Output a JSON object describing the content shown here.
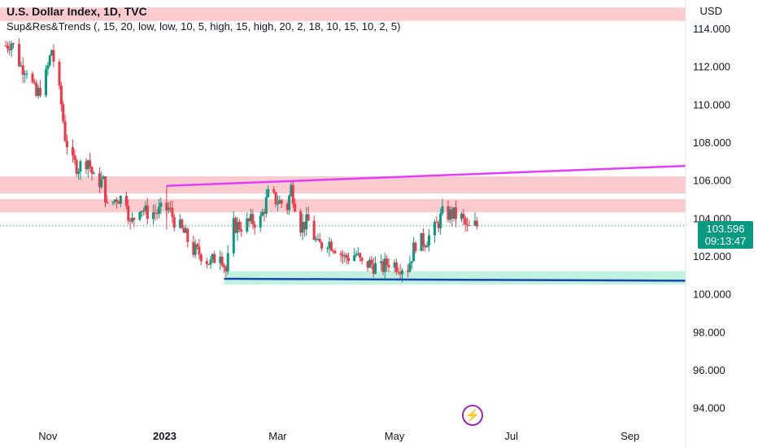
{
  "header": {
    "title": "U.S. Dollar Index, 1D, TVC",
    "indicator": "Sup&Res&Trends (, 15, 20, low, low, 10, 5, high, 15, high, 20, 2, 18, 10, 15, 10, 2, 5)",
    "currency": "USD"
  },
  "price_badge": {
    "price": "103.596",
    "countdown": "09:13:47"
  },
  "logo_icon": "lightning-icon",
  "colors": {
    "up": "#089981",
    "down": "#f23645",
    "resistance": "#f7a3a8",
    "support": "#8ee6c8",
    "trend_top": "#e040fb",
    "trend_bottom": "#1848a8",
    "badge": "#089981"
  },
  "chart_data": {
    "type": "candlestick",
    "y_ticks": [
      "114.000",
      "112.000",
      "110.000",
      "108.000",
      "106.000",
      "104.000",
      "102.000",
      "100.000",
      "98.000",
      "96.000",
      "94.000"
    ],
    "y_tick_values": [
      114,
      112,
      110,
      108,
      106,
      104,
      102,
      100,
      98,
      96,
      94
    ],
    "x_ticks": [
      "Nov",
      "2023",
      "Mar",
      "May",
      "Jul",
      "Sep"
    ],
    "x_tick_dates": [
      "2022-11-01",
      "2023-01-01",
      "2023-03-01",
      "2023-05-01",
      "2023-07-01",
      "2023-09-01"
    ],
    "ylim": [
      93,
      115.5
    ],
    "xlim": [
      "2022-10-07",
      "2023-09-30"
    ],
    "last_price": 103.596,
    "resistance_zones": [
      {
        "from": 114.4,
        "to": 115.1
      },
      {
        "from": 104.3,
        "to": 105.0
      },
      {
        "from": 105.3,
        "to": 106.2
      }
    ],
    "support_zones": [
      {
        "from": 100.5,
        "to": 101.2
      }
    ],
    "trendlines": [
      {
        "name": "top",
        "start": [
          "2023-01-02",
          105.7
        ],
        "end": [
          "2023-09-30",
          106.75
        ]
      },
      {
        "name": "bottom",
        "start": [
          "2023-02-01",
          100.8
        ],
        "end": [
          "2023-09-30",
          100.7
        ]
      }
    ],
    "closes": [
      [
        "2022-10-10",
        113.1
      ],
      [
        "2022-10-13",
        113.3
      ],
      [
        "2022-10-18",
        112.0
      ],
      [
        "2022-10-21",
        111.9
      ],
      [
        "2022-10-26",
        110.4
      ],
      [
        "2022-10-31",
        111.5
      ],
      [
        "2022-11-03",
        112.9
      ],
      [
        "2022-11-08",
        110.0
      ],
      [
        "2022-11-10",
        108.3
      ],
      [
        "2022-11-14",
        106.9
      ],
      [
        "2022-11-17",
        106.7
      ],
      [
        "2022-11-22",
        107.1
      ],
      [
        "2022-11-25",
        106.0
      ],
      [
        "2022-11-30",
        105.9
      ],
      [
        "2022-12-02",
        104.5
      ],
      [
        "2022-12-07",
        105.1
      ],
      [
        "2022-12-12",
        105.0
      ],
      [
        "2022-12-14",
        103.6
      ],
      [
        "2022-12-19",
        104.7
      ],
      [
        "2022-12-22",
        104.3
      ],
      [
        "2022-12-28",
        104.3
      ],
      [
        "2023-01-03",
        104.5
      ],
      [
        "2023-01-06",
        103.9
      ],
      [
        "2023-01-11",
        103.2
      ],
      [
        "2023-01-16",
        102.3
      ],
      [
        "2023-01-20",
        102.1
      ],
      [
        "2023-01-25",
        101.6
      ],
      [
        "2023-01-30",
        102.3
      ],
      [
        "2023-02-02",
        101.2
      ],
      [
        "2023-02-06",
        103.6
      ],
      [
        "2023-02-10",
        103.6
      ],
      [
        "2023-02-15",
        103.8
      ],
      [
        "2023-02-20",
        103.9
      ],
      [
        "2023-02-24",
        105.2
      ],
      [
        "2023-03-01",
        104.9
      ],
      [
        "2023-03-06",
        104.6
      ],
      [
        "2023-03-08",
        105.6
      ],
      [
        "2023-03-13",
        103.6
      ],
      [
        "2023-03-17",
        103.8
      ],
      [
        "2023-03-22",
        102.5
      ],
      [
        "2023-03-27",
        102.8
      ],
      [
        "2023-03-31",
        102.5
      ],
      [
        "2023-04-05",
        101.9
      ],
      [
        "2023-04-11",
        102.1
      ],
      [
        "2023-04-14",
        101.5
      ],
      [
        "2023-04-18",
        101.6
      ],
      [
        "2023-04-24",
        101.3
      ],
      [
        "2023-04-28",
        101.7
      ],
      [
        "2023-05-03",
        101.5
      ],
      [
        "2023-05-08",
        101.4
      ],
      [
        "2023-05-12",
        102.7
      ],
      [
        "2023-05-17",
        102.8
      ],
      [
        "2023-05-22",
        103.4
      ],
      [
        "2023-05-26",
        104.2
      ],
      [
        "2023-05-31",
        104.2
      ],
      [
        "2023-06-05",
        104.0
      ],
      [
        "2023-06-08",
        103.4
      ],
      [
        "2023-06-12",
        103.6
      ],
      [
        "2023-06-14",
        103.6
      ]
    ]
  }
}
